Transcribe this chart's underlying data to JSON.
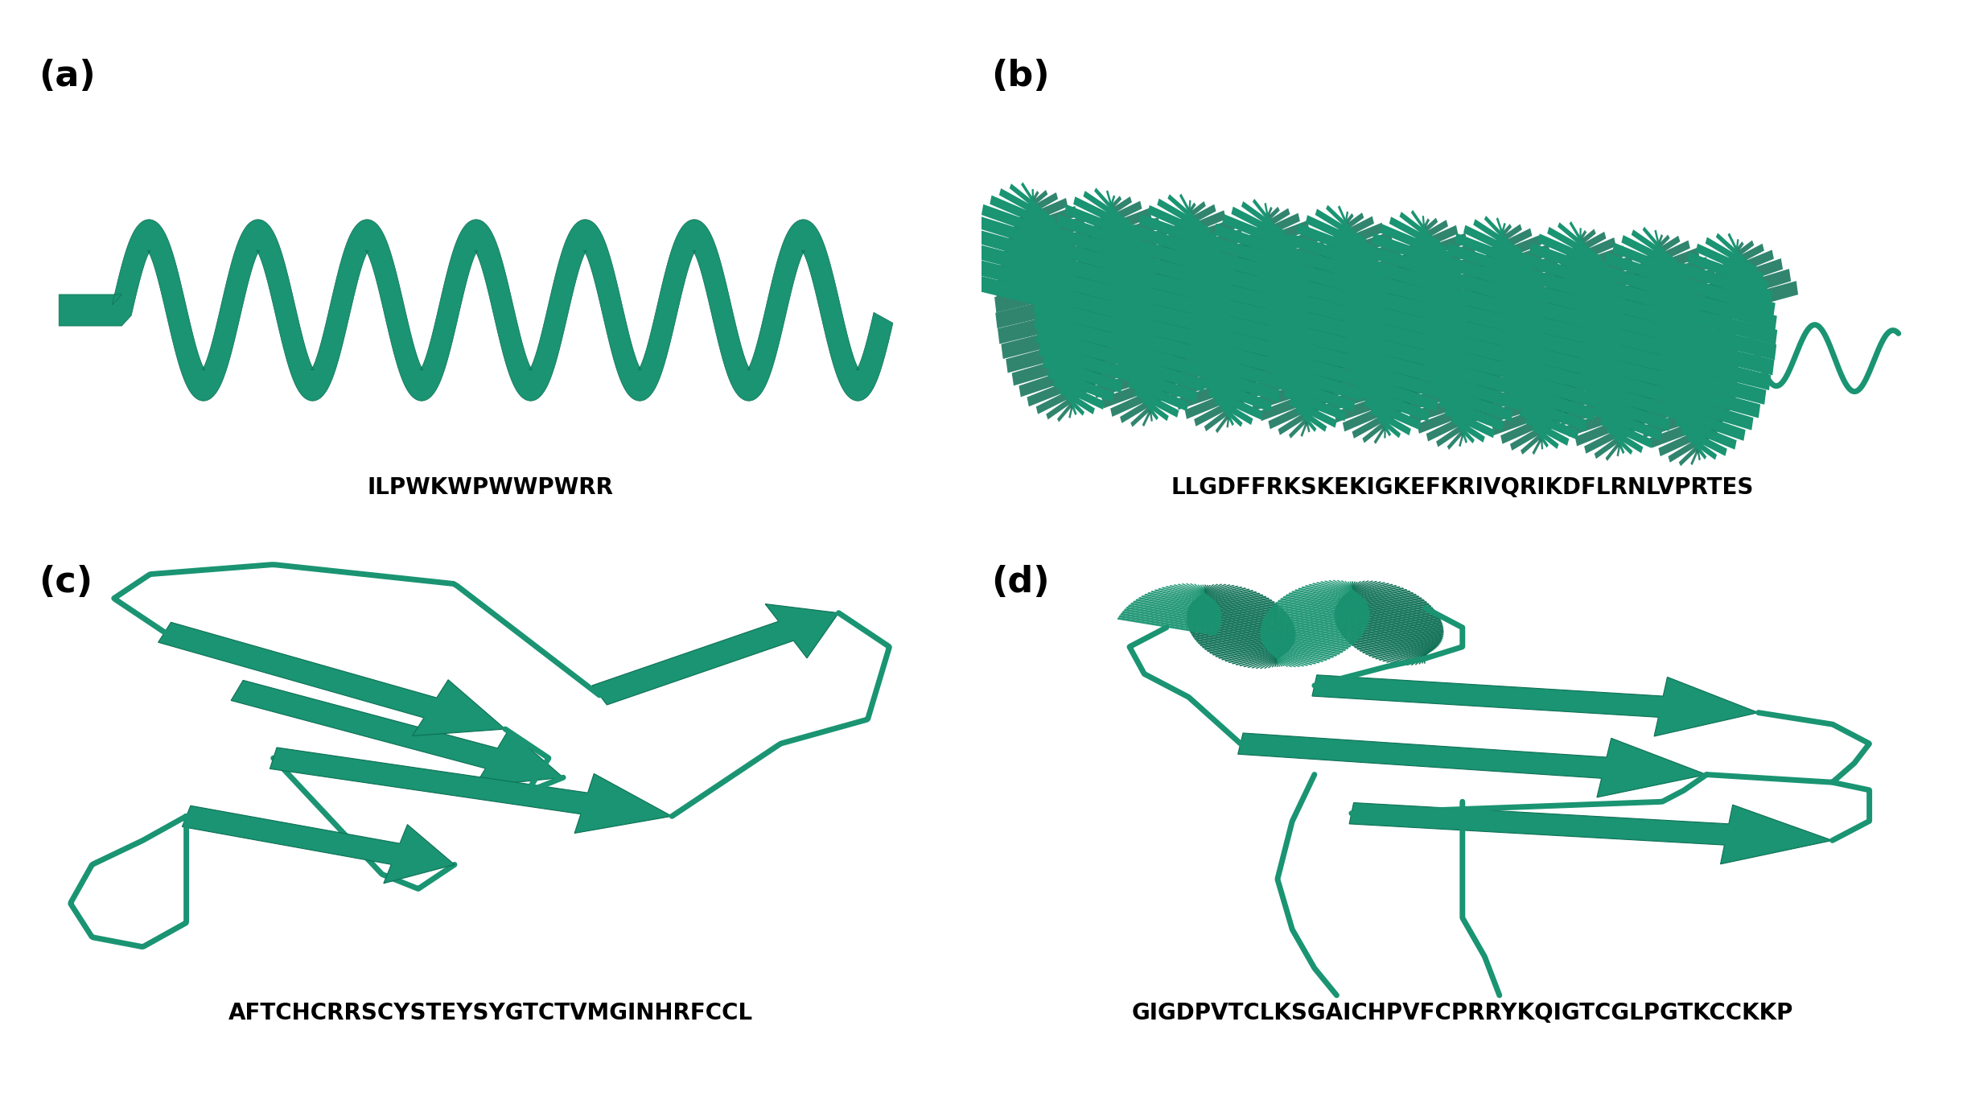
{
  "panel_labels": [
    "(a)",
    "(b)",
    "(c)",
    "(d)"
  ],
  "sequences": [
    "ILPWKWPWWPWRR",
    "LLGDFFRKSKEKIGKEFKRIVQRIKDFLRNLVPRTES",
    "AFTCHCRRSCYSTEYSYGTCTVMGINHRFCCL",
    "GIGDPVTCLKSGAICHPVFCPRRYKQIGTCGLPGTKCCKKP"
  ],
  "label_fontsize": 32,
  "seq_fontsize": 20,
  "background_color": "#ffffff",
  "teal_color": "#1a9472",
  "teal_dark": "#0d7055",
  "teal_mid": "#158060"
}
